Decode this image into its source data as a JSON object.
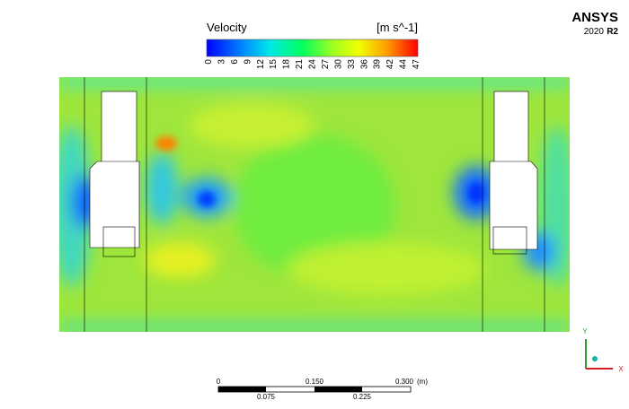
{
  "legend": {
    "title": "Velocity",
    "unit": "[m s^-1]",
    "ticks": [
      "0",
      "3",
      "6",
      "9",
      "12",
      "15",
      "18",
      "21",
      "24",
      "27",
      "30",
      "33",
      "36",
      "39",
      "42",
      "44",
      "47"
    ]
  },
  "brand": {
    "name": "ANSYS",
    "version": "2020",
    "release": "R2"
  },
  "scale_bar": {
    "top_labels": [
      "0",
      "0.150",
      "0.300"
    ],
    "unit": "(m)",
    "bottom_labels": [
      "0.075",
      "0.225"
    ]
  },
  "triad": {
    "y": "Y",
    "x": "X"
  }
}
